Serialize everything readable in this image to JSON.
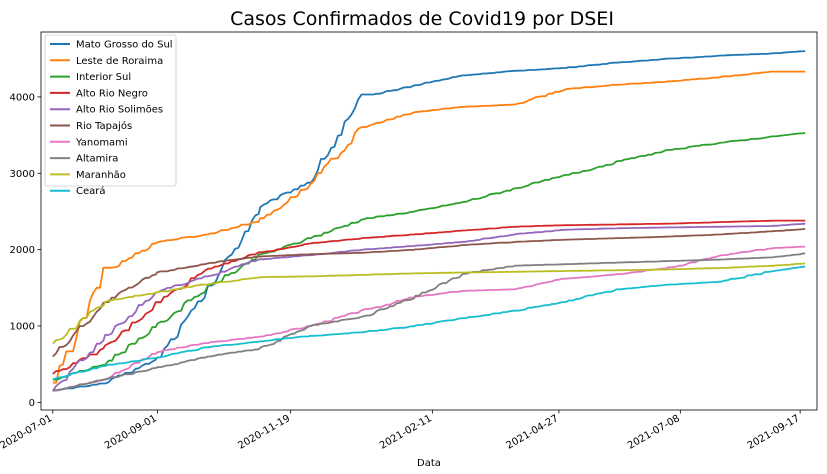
{
  "chart_data": {
    "type": "line",
    "title": "Casos Confirmados de Covid19 por DSEI",
    "xlabel": "Data",
    "ylabel": "",
    "x_start": "2020-07-01",
    "x_end": "2021-09-20",
    "xlim": [
      "2020-06-24",
      "2021-09-27"
    ],
    "ylim": [
      -100,
      4850
    ],
    "yticks": [
      0,
      1000,
      2000,
      3000,
      4000
    ],
    "xticks": [
      "2020-07-01",
      "2020-09-01",
      "2020-11-19",
      "2021-02-11",
      "2021-04-27",
      "2021-07-08",
      "2021-09-17"
    ],
    "legend_position": "upper left",
    "x": [
      "2020-07-01",
      "2020-08-01",
      "2020-09-01",
      "2020-10-01",
      "2020-11-01",
      "2020-12-01",
      "2021-01-01",
      "2021-02-01",
      "2021-03-01",
      "2021-04-01",
      "2021-05-01",
      "2021-06-01",
      "2021-07-01",
      "2021-08-01",
      "2021-09-01",
      "2021-09-20"
    ],
    "series": [
      {
        "name": "Mato Grosso do Sul",
        "color": "#1f77b4",
        "values": [
          150,
          250,
          560,
          1450,
          2550,
          2900,
          4000,
          4150,
          4280,
          4340,
          4380,
          4450,
          4500,
          4540,
          4570,
          4600
        ]
      },
      {
        "name": "Leste de Roraima",
        "color": "#ff7f0e",
        "values": [
          170,
          1700,
          2100,
          2200,
          2380,
          2850,
          3600,
          3800,
          3870,
          3900,
          4100,
          4160,
          4200,
          4260,
          4330,
          4330
        ]
      },
      {
        "name": "Interior Sul",
        "color": "#2ca02c",
        "values": [
          290,
          500,
          1000,
          1500,
          1920,
          2150,
          2400,
          2500,
          2620,
          2800,
          2970,
          3150,
          3300,
          3400,
          3480,
          3530
        ]
      },
      {
        "name": "Alto Rio Negro",
        "color": "#d62728",
        "values": [
          370,
          700,
          1300,
          1750,
          1960,
          2080,
          2150,
          2200,
          2250,
          2300,
          2320,
          2330,
          2340,
          2360,
          2380,
          2380
        ]
      },
      {
        "name": "Alto Rio Solimões",
        "color": "#9467bd",
        "values": [
          150,
          850,
          1450,
          1650,
          1870,
          1930,
          2000,
          2050,
          2100,
          2200,
          2260,
          2280,
          2290,
          2300,
          2310,
          2340
        ]
      },
      {
        "name": "Rio Tapajós",
        "color": "#8c564b",
        "values": [
          600,
          1300,
          1700,
          1820,
          1910,
          1940,
          1960,
          2000,
          2060,
          2100,
          2130,
          2150,
          2170,
          2200,
          2240,
          2270
        ]
      },
      {
        "name": "Yanomami",
        "color": "#e377c2",
        "values": [
          150,
          300,
          660,
          780,
          860,
          1000,
          1200,
          1380,
          1460,
          1480,
          1620,
          1680,
          1760,
          1920,
          2020,
          2040
        ]
      },
      {
        "name": "Altamira",
        "color": "#7f7f7f",
        "values": [
          150,
          300,
          450,
          600,
          700,
          1000,
          1120,
          1380,
          1680,
          1790,
          1810,
          1830,
          1850,
          1870,
          1900,
          1950
        ]
      },
      {
        "name": "Maranhão",
        "color": "#bcbd22",
        "values": [
          750,
          1320,
          1440,
          1550,
          1640,
          1650,
          1670,
          1690,
          1700,
          1710,
          1720,
          1730,
          1740,
          1760,
          1790,
          1820
        ]
      },
      {
        "name": "Ceará",
        "color": "#17becf",
        "values": [
          300,
          480,
          590,
          720,
          800,
          870,
          920,
          1000,
          1100,
          1200,
          1320,
          1480,
          1540,
          1580,
          1720,
          1780
        ]
      }
    ]
  }
}
